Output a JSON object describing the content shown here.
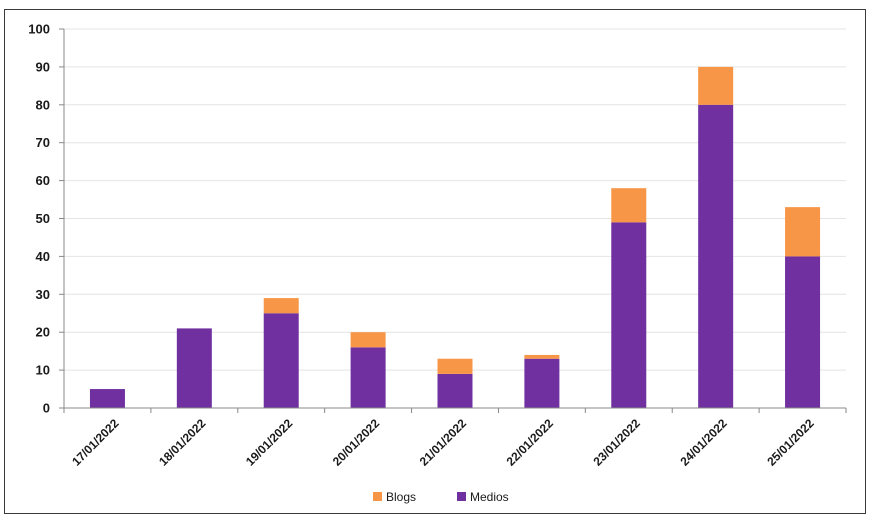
{
  "chart_data": {
    "type": "bar",
    "stacked": true,
    "categories": [
      "17/01/2022",
      "18/01/2022",
      "19/01/2022",
      "20/01/2022",
      "21/01/2022",
      "22/01/2022",
      "23/01/2022",
      "24/01/2022",
      "25/01/2022"
    ],
    "series": [
      {
        "name": "Medios",
        "color": "#7030a0",
        "values": [
          5,
          21,
          25,
          16,
          9,
          13,
          49,
          80,
          40
        ]
      },
      {
        "name": "Blogs",
        "color": "#f79646",
        "values": [
          0,
          0,
          4,
          4,
          4,
          1,
          9,
          10,
          13
        ]
      }
    ],
    "legend_order": [
      "Blogs",
      "Medios"
    ],
    "legend_position": "bottom",
    "ylim": [
      0,
      100
    ],
    "yticks": [
      "0",
      "10",
      "20",
      "30",
      "40",
      "50",
      "60",
      "70",
      "80",
      "90",
      "100"
    ],
    "grid": true,
    "title": "",
    "xlabel": "",
    "ylabel": ""
  }
}
